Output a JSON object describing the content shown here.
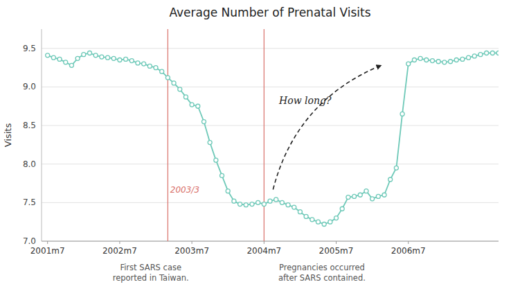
{
  "chart_data": {
    "type": "line",
    "title": "Average Number of Prenatal Visits",
    "y_label": "Visits",
    "x": [
      0,
      1,
      2,
      3,
      4,
      5,
      6,
      7,
      8,
      9,
      10,
      11,
      12,
      13,
      14,
      15,
      16,
      17,
      18,
      19,
      20,
      21,
      22,
      23,
      24,
      25,
      26,
      27,
      28,
      29,
      30,
      31,
      32,
      33,
      34,
      35,
      36,
      37,
      38,
      39,
      40,
      41,
      42,
      43,
      44,
      45,
      46,
      47,
      48,
      49,
      50,
      51,
      52,
      53,
      54,
      55,
      56,
      57,
      58,
      59,
      60,
      61,
      62,
      63,
      64,
      65,
      66,
      67,
      68,
      69,
      70,
      71,
      72,
      73,
      74,
      75
    ],
    "values": [
      9.41,
      9.38,
      9.36,
      9.32,
      9.28,
      9.37,
      9.42,
      9.44,
      9.41,
      9.39,
      9.38,
      9.37,
      9.35,
      9.36,
      9.34,
      9.31,
      9.3,
      9.27,
      9.25,
      9.2,
      9.12,
      9.05,
      8.97,
      8.87,
      8.77,
      8.75,
      8.55,
      8.28,
      8.05,
      7.85,
      7.65,
      7.52,
      7.48,
      7.47,
      7.48,
      7.5,
      7.48,
      7.52,
      7.54,
      7.5,
      7.47,
      7.44,
      7.38,
      7.32,
      7.28,
      7.25,
      7.22,
      7.25,
      7.3,
      7.42,
      7.57,
      7.58,
      7.6,
      7.65,
      7.55,
      7.58,
      7.6,
      7.8,
      7.95,
      8.65,
      9.3,
      9.35,
      9.37,
      9.35,
      9.34,
      9.33,
      9.32,
      9.33,
      9.35,
      9.36,
      9.38,
      9.4,
      9.42,
      9.44,
      9.44,
      9.44
    ],
    "color": "#6ec9b8",
    "marker": "circle",
    "xlim": [
      -1,
      75
    ],
    "xticks": [
      {
        "value": 0,
        "label": "2001m7"
      },
      {
        "value": 12,
        "label": "2002m7"
      },
      {
        "value": 24,
        "label": "2003m7"
      },
      {
        "value": 36,
        "label": "2004m7"
      },
      {
        "value": 48,
        "label": "2005m7"
      },
      {
        "value": 60,
        "label": "2006m7"
      }
    ],
    "ylim": [
      7.0,
      9.75
    ],
    "yticks": [
      {
        "value": 7.0,
        "label": "7.0"
      },
      7.5,
      {
        "value": 8.0,
        "label": "8.0"
      },
      8.5,
      {
        "value": 9.0,
        "label": "9.0"
      },
      9.5
    ],
    "grid": true,
    "annotations": [
      {
        "type": "vline",
        "x": 20,
        "color": "#d9706a",
        "text": "2003/3",
        "text_x": 20.4,
        "text_y": 7.63
      },
      {
        "type": "vline",
        "x": 36,
        "color": "#d9706a"
      },
      {
        "type": "arrow",
        "x": 37.5,
        "y": 7.67,
        "x2": 55.5,
        "y2": 9.28
      },
      {
        "type": "text",
        "text": "How long?",
        "x": 38.5,
        "y": 8.78
      },
      {
        "type": "note",
        "lines": [
          "First SARS case",
          "reported in Taiwan."
        ]
      },
      {
        "type": "note",
        "lines": [
          "Pregnancies occurred",
          "after SARS contained."
        ]
      }
    ]
  }
}
